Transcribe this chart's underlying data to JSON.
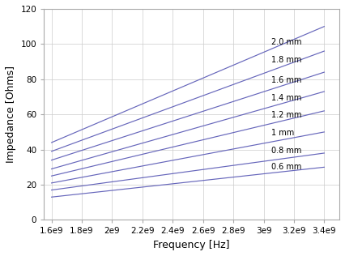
{
  "freq_start": 1600000000.0,
  "freq_end": 3400000000.0,
  "xlim": [
    1550000000.0,
    3500000000.0
  ],
  "ylim": [
    0,
    120
  ],
  "xticks": [
    1600000000.0,
    1800000000.0,
    2000000000.0,
    2200000000.0,
    2400000000.0,
    2600000000.0,
    2800000000.0,
    3000000000.0,
    3200000000.0,
    3400000000.0
  ],
  "yticks": [
    0,
    20,
    40,
    60,
    80,
    100,
    120
  ],
  "xlabel": "Frequency [Hz]",
  "ylabel": "Impedance [Ohms]",
  "line_color": "#6666bb",
  "lengths_mm": [
    0.6,
    0.8,
    1.0,
    1.2,
    1.4,
    1.6,
    1.8,
    2.0
  ],
  "labels": [
    "0.6 mm",
    "0.8 mm",
    "1 mm",
    "1.2 mm",
    "1.4 mm",
    "1.6 mm",
    "1.8 mm",
    "2.0 mm"
  ],
  "z_starts": [
    13,
    17,
    21,
    25,
    29,
    34,
    39,
    44
  ],
  "z_ends": [
    30,
    38,
    50,
    62,
    73,
    84,
    96,
    110
  ],
  "background_color": "#ffffff",
  "grid_color": "#cccccc",
  "xtick_labels": [
    "1.6e9",
    "1.8e9",
    "2e9",
    "2.2e9",
    "2.4e9",
    "2.6e9",
    "2.8e9",
    "3e9",
    "3.2e9",
    "3.4e9"
  ]
}
